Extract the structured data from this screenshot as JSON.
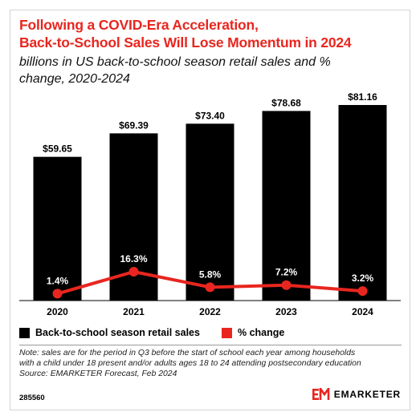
{
  "header": {
    "title_line1": "Following a COVID-Era Acceleration,",
    "title_line2": "Back-to-School Sales Will Lose Momentum in 2024",
    "subtitle_line1": "billions in US back-to-school season retail sales and %",
    "subtitle_line2": "change, 2020-2024"
  },
  "chart_data": {
    "type": "bar",
    "categories": [
      "2020",
      "2021",
      "2022",
      "2023",
      "2024"
    ],
    "series": [
      {
        "name": "Back-to-school season retail sales",
        "type": "bar",
        "values": [
          59.65,
          69.39,
          73.4,
          78.68,
          81.16
        ],
        "labels": [
          "$59.65",
          "$69.39",
          "$73.40",
          "$78.68",
          "$81.16"
        ],
        "color": "#000000"
      },
      {
        "name": "% change",
        "type": "line",
        "values": [
          1.4,
          16.3,
          5.8,
          7.2,
          3.2
        ],
        "labels": [
          "1.4%",
          "16.3%",
          "5.8%",
          "7.2%",
          "3.2%"
        ],
        "color": "#e8261f"
      }
    ],
    "ylim": [
      0,
      81.16
    ],
    "ylim_secondary": [
      0,
      16.3
    ],
    "grid": false,
    "legend": "bottom"
  },
  "legend": {
    "bars_label": "Back-to-school season retail sales",
    "line_label": "% change"
  },
  "footer": {
    "note_line1": "Note: sales are for the period in Q3 before the start of school each year among households",
    "note_line2": "with a child under 18 present and/or adults ages 18 to 24 attending postsecondary education",
    "source": "Source: EMARKETER Forecast, Feb 2024",
    "chart_id": "285560",
    "brand": "EMARKETER"
  },
  "colors": {
    "accent": "#e8261f",
    "bars": "#000000"
  }
}
